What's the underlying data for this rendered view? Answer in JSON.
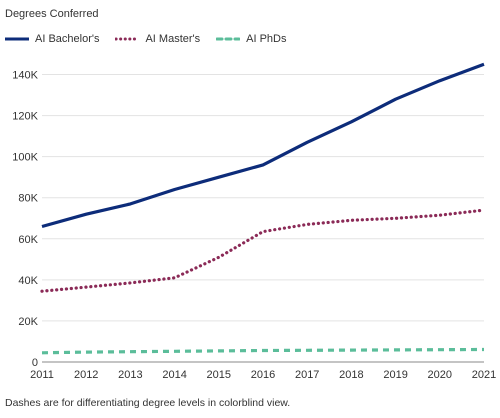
{
  "chart_data": {
    "type": "line",
    "title": "Degrees Conferred",
    "x": [
      2011,
      2012,
      2013,
      2014,
      2015,
      2016,
      2017,
      2018,
      2019,
      2020,
      2021
    ],
    "x_tick_labels": [
      "2011",
      "2012",
      "2013",
      "2014",
      "2015",
      "2016",
      "2017",
      "2018",
      "2019",
      "2020",
      "2021"
    ],
    "y_tick_labels": [
      "0",
      "20K",
      "40K",
      "60K",
      "80K",
      "100K",
      "120K",
      "140K"
    ],
    "y_ticks": [
      0,
      20000,
      40000,
      60000,
      80000,
      100000,
      120000,
      140000
    ],
    "ylim": [
      0,
      150000
    ],
    "grid": true,
    "legend_position": "top-left",
    "series": [
      {
        "name": "AI Bachelor's",
        "color": "#0d2c7a",
        "style": "solid",
        "values": [
          66000,
          72000,
          77000,
          84000,
          90000,
          96000,
          107000,
          117000,
          128000,
          137000,
          145000
        ]
      },
      {
        "name": "AI Master's",
        "color": "#8b2a57",
        "style": "dotted",
        "values": [
          34500,
          36500,
          38500,
          41000,
          51000,
          63500,
          67000,
          69000,
          70000,
          71500,
          74000
        ]
      },
      {
        "name": "AI PhDs",
        "color": "#5bbd9a",
        "style": "dashed",
        "values": [
          4500,
          4800,
          5000,
          5200,
          5400,
          5600,
          5700,
          5800,
          5900,
          6000,
          6100
        ]
      }
    ]
  },
  "footnote": "Dashes are for differentiating degree levels in colorblind view."
}
